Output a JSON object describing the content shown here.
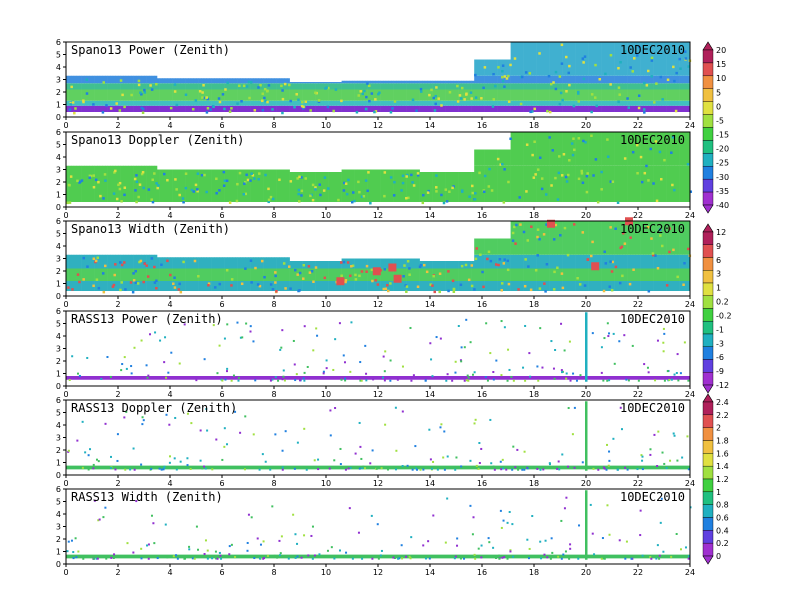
{
  "date_label": "10DEC2010",
  "x_ticks": [
    "0",
    "2",
    "4",
    "6",
    "8",
    "10",
    "12",
    "14",
    "16",
    "18",
    "20",
    "22",
    "24"
  ],
  "y_ticks": [
    "0",
    "1",
    "2",
    "3",
    "4",
    "5",
    "6"
  ],
  "colorbars": [
    {
      "name": "doppler-power-colorbar",
      "labels": [
        "20",
        "15",
        "10",
        "5",
        "0",
        "-5",
        "-15",
        "-20",
        "-25",
        "-30",
        "-35",
        "-40"
      ],
      "colors": [
        "#b0205a",
        "#e05050",
        "#f09040",
        "#f0c040",
        "#e0e040",
        "#a0e040",
        "#40d040",
        "#20c080",
        "#20b0c0",
        "#2080e0",
        "#6040e0",
        "#a030d0"
      ]
    },
    {
      "name": "width-power-colorbar",
      "labels": [
        "12",
        "9",
        "6",
        "3",
        "1",
        "0.2",
        "-0.2",
        "-1",
        "-3",
        "-6",
        "-9",
        "-12"
      ],
      "colors": [
        "#b0205a",
        "#e05050",
        "#f09040",
        "#f0c040",
        "#e0e040",
        "#a0e040",
        "#40d040",
        "#20c080",
        "#20b0c0",
        "#2080e0",
        "#6040e0",
        "#a030d0"
      ]
    },
    {
      "name": "rass-colorbar",
      "labels": [
        "2.4",
        "2.2",
        "2",
        "1.8",
        "1.6",
        "1.4",
        "1.2",
        "1",
        "0.8",
        "0.6",
        "0.4",
        "0.2",
        "0"
      ],
      "colors": [
        "#b0205a",
        "#e05050",
        "#f09040",
        "#f0c040",
        "#e0e040",
        "#a0e040",
        "#40d040",
        "#20c080",
        "#20b0c0",
        "#2080e0",
        "#6040e0",
        "#a030d0"
      ]
    }
  ],
  "chart_data": [
    {
      "type": "heatmap",
      "title": "Spano13 Power (Zenith)",
      "xlim": [
        0,
        24
      ],
      "ylim": [
        0,
        6
      ],
      "layers": [
        {
          "y": [
            0.4,
            0.9
          ],
          "color": "#8030d0"
        },
        {
          "y": [
            0.9,
            1.3
          ],
          "color": "#40c0c0"
        },
        {
          "y": [
            1.3,
            2.2
          ],
          "color": "#60d060"
        },
        {
          "y": [
            2.2,
            2.7
          ],
          "color": "#40c090"
        },
        {
          "y": [
            2.7,
            3.3
          ],
          "color": "#4090e0"
        }
      ],
      "top_height": [
        [
          0,
          3.3
        ],
        [
          3.5,
          3.1
        ],
        [
          8.5,
          2.8
        ],
        [
          10.5,
          2.9
        ],
        [
          13.5,
          2.9
        ],
        [
          15.6,
          4.6
        ],
        [
          17,
          6
        ]
      ]
    },
    {
      "type": "heatmap",
      "title": "Spano13 Doppler (Zenith)",
      "xlim": [
        0,
        24
      ],
      "ylim": [
        0,
        6
      ],
      "layers": [
        {
          "y": [
            0.4,
            3.3
          ],
          "color": "#50cc50"
        }
      ],
      "top_height": [
        [
          0,
          3.3
        ],
        [
          3.5,
          3.0
        ],
        [
          8.5,
          2.8
        ],
        [
          10.5,
          3.0
        ],
        [
          13.5,
          2.8
        ],
        [
          15.6,
          4.6
        ],
        [
          17,
          6
        ]
      ]
    },
    {
      "type": "heatmap",
      "title": "Spano13 Width (Zenith)",
      "xlim": [
        0,
        24
      ],
      "ylim": [
        0,
        6
      ],
      "layers": [
        {
          "y": [
            0.4,
            1.2
          ],
          "color": "#30b0c0"
        },
        {
          "y": [
            1.2,
            2.2
          ],
          "color": "#50cc60"
        },
        {
          "y": [
            2.2,
            3.3
          ],
          "color": "#30b0c0"
        }
      ],
      "top_height": [
        [
          0,
          3.3
        ],
        [
          3.5,
          3.1
        ],
        [
          8.5,
          2.8
        ],
        [
          10.5,
          3.0
        ],
        [
          13.5,
          2.8
        ],
        [
          15.6,
          4.6
        ],
        [
          17,
          6
        ]
      ]
    },
    {
      "type": "scatter",
      "title": "RASS13 Power (Zenith)",
      "xlim": [
        0,
        24
      ],
      "ylim": [
        0,
        6
      ],
      "band_y": [
        0.5,
        0.8
      ],
      "band_color": "#9030d0",
      "spike_x": 20
    },
    {
      "type": "scatter",
      "title": "RASS13 Doppler (Zenith)",
      "xlim": [
        0,
        24
      ],
      "ylim": [
        0,
        6
      ],
      "band_y": [
        0.45,
        0.75
      ],
      "band_color": "#40c060",
      "spike_x": 20
    },
    {
      "type": "scatter",
      "title": "RASS13 Width (Zenith)",
      "xlim": [
        0,
        24
      ],
      "ylim": [
        0,
        6
      ],
      "band_y": [
        0.45,
        0.75
      ],
      "band_color": "#40c060",
      "spike_x": 20
    }
  ]
}
